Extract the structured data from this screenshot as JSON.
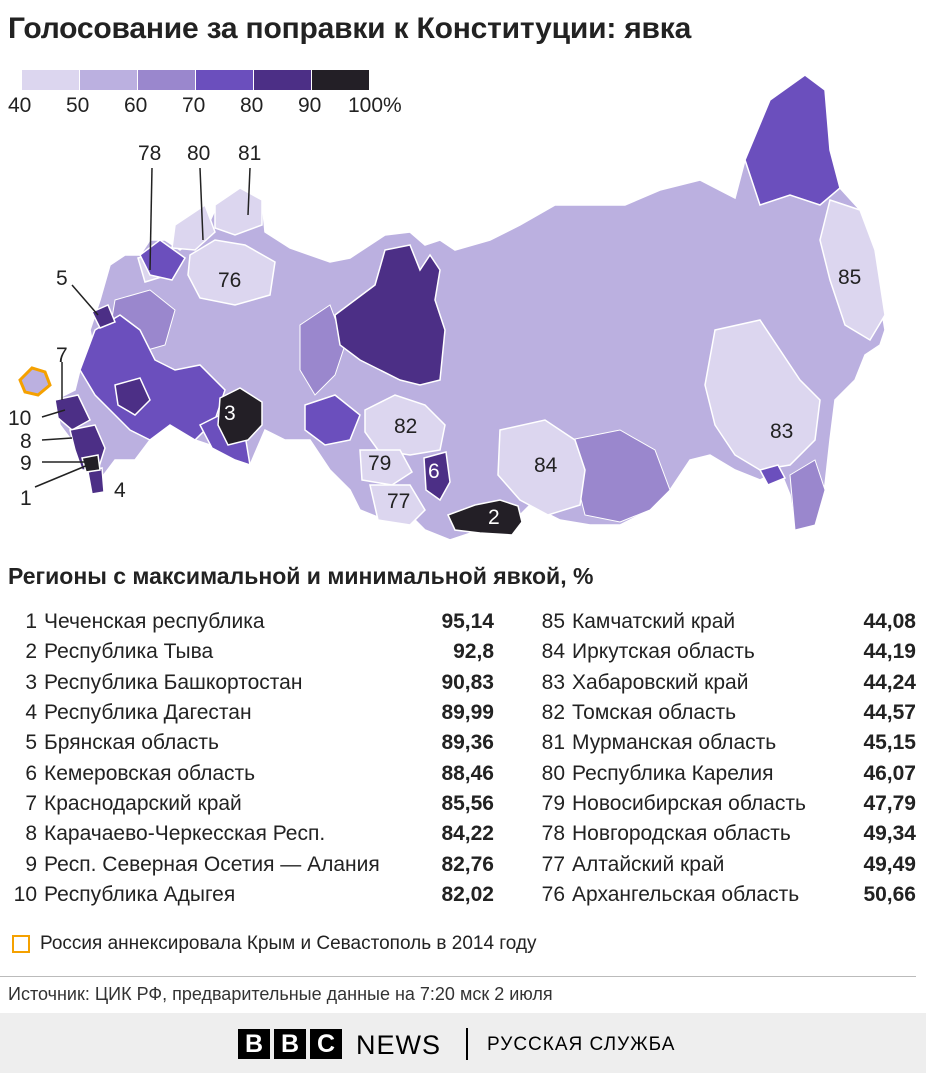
{
  "title": "Голосование за поправки к Конституции: явка",
  "legend": {
    "ticks": [
      "40",
      "50",
      "60",
      "70",
      "80",
      "90",
      "100%"
    ],
    "colors": [
      "#dcd6ef",
      "#bbb0e0",
      "#9a87cd",
      "#6b4fbd",
      "#4c2f86",
      "#231f26"
    ]
  },
  "map": {
    "labels": [
      "78",
      "80",
      "81",
      "76",
      "85",
      "5",
      "7",
      "10",
      "8",
      "9",
      "1",
      "4",
      "3",
      "82",
      "79",
      "6",
      "77",
      "2",
      "84",
      "83"
    ],
    "crimea_color": "#f5a100"
  },
  "subtitle": "Регионы с максимальной и минимальной явкой, %",
  "top": [
    {
      "rank": "1",
      "name": "Чеченская республика",
      "value": "95,14"
    },
    {
      "rank": "2",
      "name": "Республика Тыва",
      "value": "92,8"
    },
    {
      "rank": "3",
      "name": "Республика Башкортостан",
      "value": "90,83"
    },
    {
      "rank": "4",
      "name": "Республика Дагестан",
      "value": "89,99"
    },
    {
      "rank": "5",
      "name": "Брянская область",
      "value": "89,36"
    },
    {
      "rank": "6",
      "name": "Кемеровская область",
      "value": "88,46"
    },
    {
      "rank": "7",
      "name": "Краснодарский край",
      "value": "85,56"
    },
    {
      "rank": "8",
      "name": "Карачаево-Черкесская Респ.",
      "value": "84,22"
    },
    {
      "rank": "9",
      "name": "Респ. Северная Осетия — Алания",
      "value": "82,76"
    },
    {
      "rank": "10",
      "name": "Республика Адыгея",
      "value": "82,02"
    }
  ],
  "bottom": [
    {
      "rank": "85",
      "name": "Камчатский край",
      "value": "44,08"
    },
    {
      "rank": "84",
      "name": "Иркутская область",
      "value": "44,19"
    },
    {
      "rank": "83",
      "name": "Хабаровский край",
      "value": "44,24"
    },
    {
      "rank": "82",
      "name": "Томская область",
      "value": "44,57"
    },
    {
      "rank": "81",
      "name": "Мурманская область",
      "value": "45,15"
    },
    {
      "rank": "80",
      "name": "Республика Карелия",
      "value": "46,07"
    },
    {
      "rank": "79",
      "name": "Новосибирская область",
      "value": "47,79"
    },
    {
      "rank": "78",
      "name": "Новгородская область",
      "value": "49,34"
    },
    {
      "rank": "77",
      "name": "Алтайский край",
      "value": "49,49"
    },
    {
      "rank": "76",
      "name": "Архангельская область",
      "value": "50,66"
    }
  ],
  "note": "Россия аннексировала Крым и Севастополь в 2014 году",
  "source": "Источник: ЦИК РФ, предварительные данные на 7:20 мск 2 июля",
  "footer": {
    "logo_letters": [
      "B",
      "B",
      "C"
    ],
    "news": "NEWS",
    "service": "РУССКАЯ СЛУЖБА"
  }
}
